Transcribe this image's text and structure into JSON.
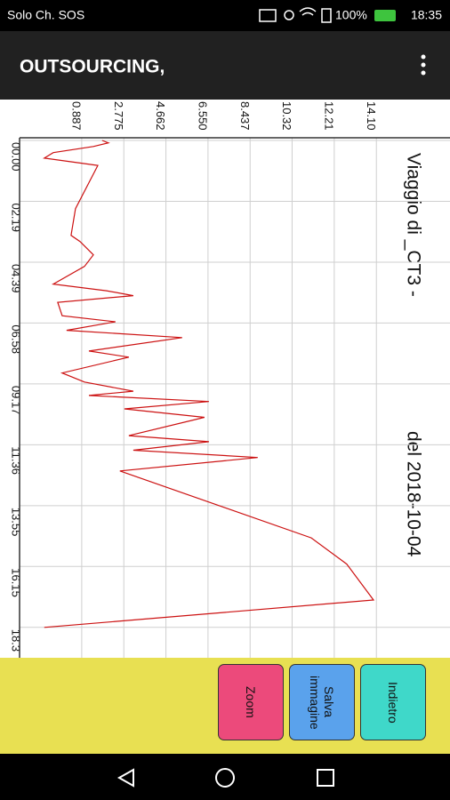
{
  "status_bar": {
    "left": "Solo Ch. SOS",
    "battery": "100%",
    "time": "18:35"
  },
  "app_bar": {
    "title": "OUTSOURCING,"
  },
  "chart_data": {
    "type": "line",
    "title": "Viaggio di _CT3 -",
    "subtitle": "del 2018-10-04",
    "color": "#cc1111",
    "grid": true,
    "x": [
      0,
      0.04,
      0.1,
      0.2,
      0.29,
      0.35,
      0.41,
      1.12,
      1.56,
      1.66,
      1.88,
      2.07,
      2.36,
      2.47,
      2.55,
      2.66,
      2.88,
      2.98,
      3.12,
      3.24,
      3.46,
      3.56,
      3.82,
      3.97,
      4.12,
      4.19,
      4.29,
      4.41,
      4.55,
      4.85,
      4.95,
      5.09,
      5.21,
      5.43,
      6.53,
      6.96,
      7.55,
      8.0
    ],
    "values": [
      1.8,
      2.08,
      1.41,
      -0.39,
      -0.79,
      0.41,
      1.61,
      0.61,
      0.41,
      0.81,
      1.41,
      1.01,
      -0.39,
      2.0,
      3.2,
      -0.19,
      0.01,
      2.4,
      0.21,
      5.39,
      1.21,
      3.0,
      0.01,
      1.01,
      3.2,
      1.21,
      6.59,
      2.8,
      6.39,
      3.0,
      6.59,
      3.2,
      8.78,
      2.6,
      11.18,
      12.77,
      13.97,
      -0.79
    ],
    "xlim": [
      0,
      8.5
    ],
    "xticks": [
      {
        "value": 0,
        "label": "00.00"
      },
      {
        "value": 1,
        "label": "02.19"
      },
      {
        "value": 2,
        "label": "04.39"
      },
      {
        "value": 3,
        "label": "06.58"
      },
      {
        "value": 4,
        "label": "09.17"
      },
      {
        "value": 5,
        "label": "11.36"
      },
      {
        "value": 6,
        "label": "13.55"
      },
      {
        "value": 7,
        "label": "16.15"
      },
      {
        "value": 8,
        "label": "18.3"
      }
    ],
    "ylim": [
      -1.9,
      17.4
    ],
    "yticks": [
      0.887,
      2.775,
      4.662,
      {
        "value": 6.55,
        "label": "6.550"
      },
      8.437,
      10.32,
      12.21,
      {
        "value": 14.1,
        "label": "14.10"
      }
    ]
  },
  "buttons": [
    "Zoom",
    "Salva immagine",
    "Indietro"
  ]
}
